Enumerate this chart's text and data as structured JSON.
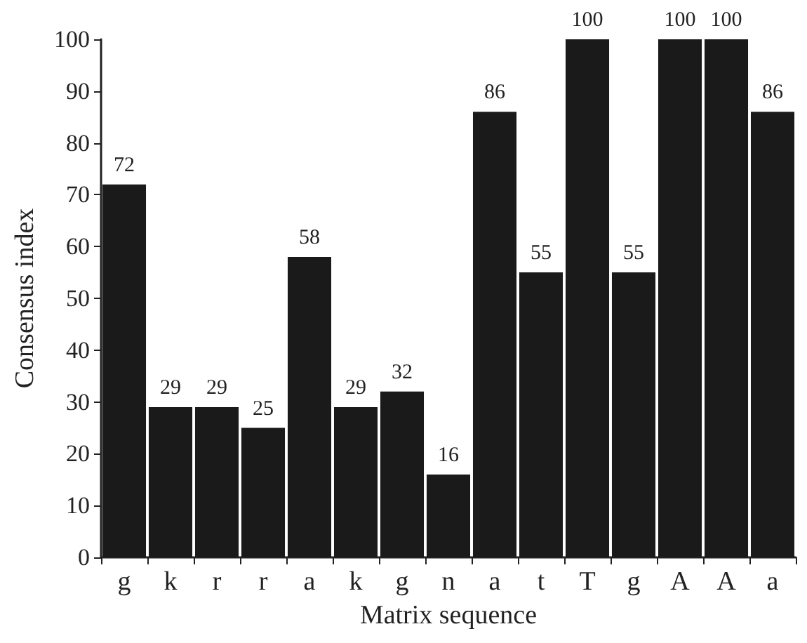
{
  "chart_data": {
    "type": "bar",
    "xlabel": "Matrix sequence",
    "ylabel": "Consensus index",
    "categories": [
      "g",
      "k",
      "r",
      "r",
      "a",
      "k",
      "g",
      "n",
      "a",
      "t",
      "T",
      "g",
      "A",
      "A",
      "a"
    ],
    "values": [
      72,
      29,
      29,
      25,
      58,
      29,
      32,
      16,
      86,
      55,
      100,
      55,
      100,
      100,
      86
    ],
    "color": "#1a1a1a",
    "ylim": [
      0,
      100
    ],
    "yticks": [
      0,
      10,
      20,
      30,
      40,
      50,
      60,
      70,
      80,
      90,
      100
    ],
    "grid": false,
    "data_labels": true
  }
}
